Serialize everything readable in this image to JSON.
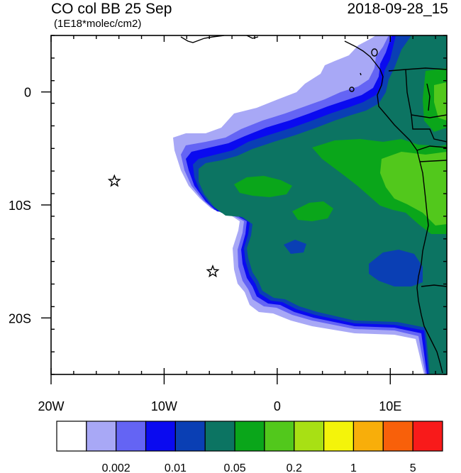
{
  "header": {
    "title": "CO col BB 25 Sep",
    "timestamp": "2018-09-28_15",
    "units": "(1E18*molec/cm2)"
  },
  "map": {
    "lon_range": [
      -20,
      15
    ],
    "lat_range": [
      -25,
      5
    ],
    "x_ticks": [
      {
        "lon": -20,
        "label": "20W"
      },
      {
        "lon": -10,
        "label": "10W"
      },
      {
        "lon": 0,
        "label": "0"
      },
      {
        "lon": 10,
        "label": "10E"
      }
    ],
    "y_ticks": [
      {
        "lat": 0,
        "label": "0"
      },
      {
        "lat": -10,
        "label": "10S"
      },
      {
        "lat": -20,
        "label": "20S"
      }
    ],
    "stars": [
      {
        "name": "st-helena-station-star",
        "lon": -5.7,
        "lat": -15.9
      },
      {
        "name": "ascension-island-station-star",
        "lon": -14.4,
        "lat": -7.9
      }
    ]
  },
  "colorbar": {
    "colors": [
      "#ffffff",
      "#a8a8f6",
      "#6464f4",
      "#0a0af0",
      "#0a3fb4",
      "#0c7462",
      "#0aa61a",
      "#52c81c",
      "#a8e014",
      "#f4f40a",
      "#f8ae0a",
      "#f8600a",
      "#f81a1a"
    ],
    "labels": [
      {
        "text": "0.002",
        "boundary": 2
      },
      {
        "text": "0.01",
        "boundary": 4
      },
      {
        "text": "0.05",
        "boundary": 6
      },
      {
        "text": "0.2",
        "boundary": 8
      },
      {
        "text": "1",
        "boundary": 10
      },
      {
        "text": "5",
        "boundary": 12
      }
    ]
  }
}
